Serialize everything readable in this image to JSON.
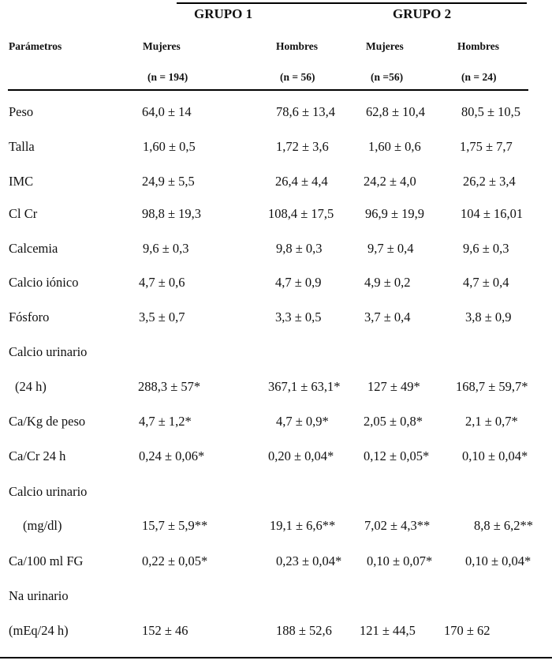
{
  "header": {
    "group1": "GRUPO 1",
    "group2": "GRUPO 2",
    "param_label": "Parámetros",
    "columns": [
      {
        "sex": "Mujeres",
        "n": "(n = 194)"
      },
      {
        "sex": "Hombres",
        "n": "(n = 56)"
      },
      {
        "sex": "Mujeres",
        "n": "(n =56)"
      },
      {
        "sex": "Hombres",
        "n": "(n = 24)"
      }
    ]
  },
  "rows": [
    {
      "label": "Peso",
      "values": [
        "64,0 ± 14",
        "78,6 ± 13,4",
        "62,8 ± 10,4",
        "80,5 ± 10,5"
      ]
    },
    {
      "label": "Talla",
      "values": [
        "1,60 ± 0,5",
        "1,72 ± 3,6",
        "1,60 ± 0,6",
        "1,75 ± 7,7"
      ]
    },
    {
      "label": "IMC",
      "values": [
        "24,9 ± 5,5",
        "26,4 ± 4,4",
        "24,2 ± 4,0",
        "26,2 ± 3,4"
      ]
    },
    {
      "label": "Cl Cr",
      "values": [
        "98,8 ± 19,3",
        "108,4 ± 17,5",
        "96,9 ± 19,9",
        "104 ± 16,01"
      ]
    },
    {
      "label": "Calcemia",
      "values": [
        "9,6 ± 0,3",
        "9,8 ± 0,3",
        "9,7 ± 0,4",
        "9,6 ± 0,3"
      ]
    },
    {
      "label": "Calcio iónico",
      "values": [
        "4,7 ± 0,6",
        "4,7 ± 0,9",
        "4,9 ± 0,2",
        "4,7 ± 0,4"
      ]
    },
    {
      "label": "Fósforo",
      "values": [
        "3,5 ± 0,7",
        "3,3 ± 0,5",
        "3,7 ± 0,4",
        "3,8 ± 0,9"
      ]
    },
    {
      "label": "Calcio urinario",
      "values": [
        "",
        "",
        "",
        ""
      ]
    },
    {
      "label": "(24 h)",
      "values": [
        "288,3 ± 57*",
        "367,1 ± 63,1*",
        "127 ± 49*",
        "168,7 ± 59,7*"
      ]
    },
    {
      "label": "Ca/Kg de peso",
      "values": [
        "4,7 ± 1,2*",
        "4,7 ± 0,9*",
        "2,05 ± 0,8*",
        "2,1 ± 0,7*"
      ]
    },
    {
      "label": "Ca/Cr 24 h",
      "values": [
        "0,24 ± 0,06*",
        "0,20 ± 0,04*",
        "0,12 ± 0,05*",
        "0,10 ± 0,04*"
      ]
    },
    {
      "label": "Calcio urinario",
      "values": [
        "",
        "",
        "",
        ""
      ]
    },
    {
      "label": "(mg/dl)",
      "values": [
        "15,7 ± 5,9**",
        "19,1 ± 6,6**",
        "7,02 ± 4,3**",
        "8,8 ± 6,2**"
      ]
    },
    {
      "label": "Ca/100 ml FG",
      "values": [
        "0,22 ± 0,05*",
        "0,23 ± 0,04*",
        "0,10 ± 0,07*",
        "0,10 ± 0,04*"
      ]
    },
    {
      "label": "Na urinario",
      "values": [
        "",
        "",
        "",
        ""
      ]
    },
    {
      "label": "(mEq/24 h)",
      "values": [
        "152 ± 46",
        "188 ± 52,6",
        "121 ± 44,5",
        "170 ± 62"
      ]
    }
  ]
}
